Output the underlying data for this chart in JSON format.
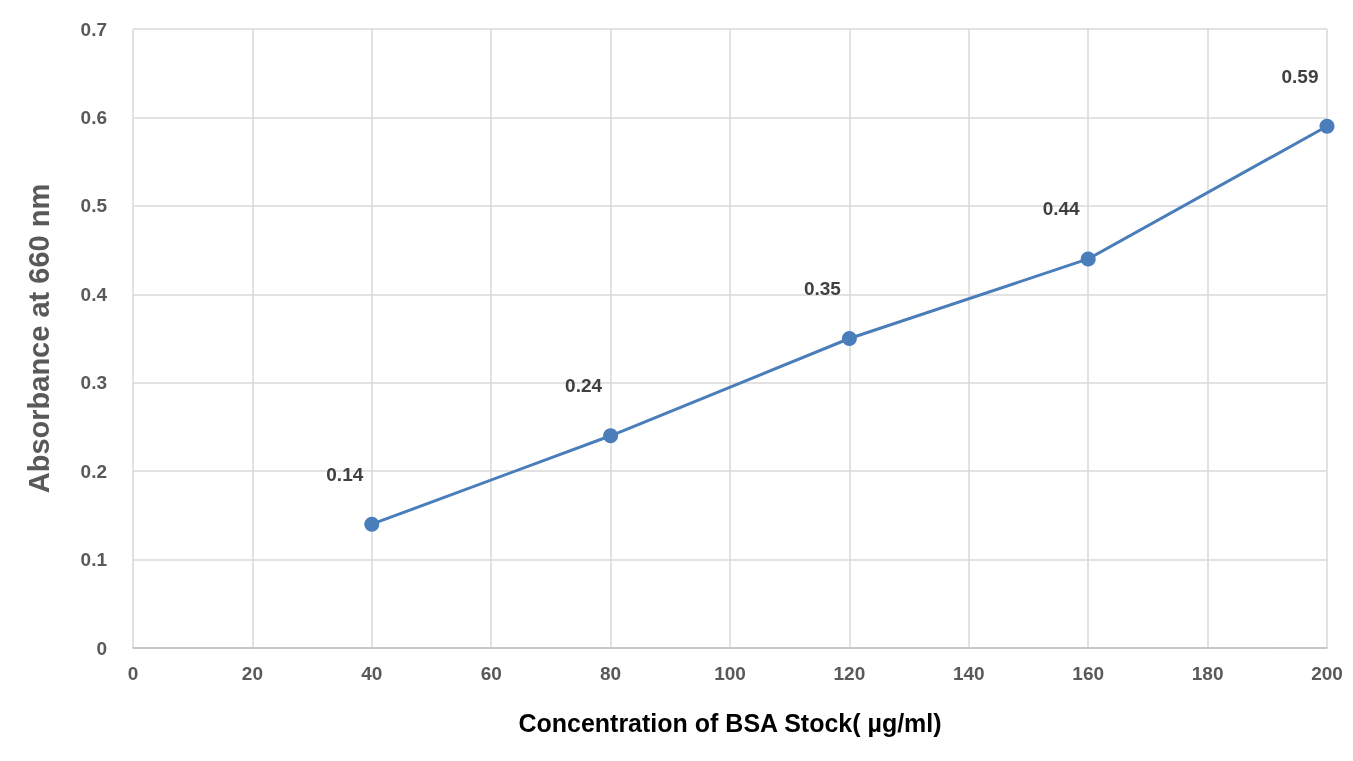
{
  "chart_data": {
    "type": "line",
    "xlabel": "Concentration of BSA Stock( µg/ml)",
    "ylabel": "Absorbance at 660 nm",
    "x": [
      40,
      80,
      120,
      160,
      200
    ],
    "series": [
      {
        "color": "#4a7ebb",
        "values": [
          0.14,
          0.24,
          0.35,
          0.44,
          0.59
        ]
      }
    ],
    "xlim": [
      0,
      200
    ],
    "xticks": [
      0,
      20,
      40,
      60,
      80,
      100,
      120,
      140,
      160,
      180,
      200
    ],
    "ylim": [
      0,
      0.7
    ],
    "yticks": [
      0,
      0.1,
      0.2,
      0.3,
      0.4,
      0.5,
      0.6,
      0.7
    ],
    "grid": true,
    "marker": "circle",
    "line_style": "solid",
    "data_labels": true
  }
}
